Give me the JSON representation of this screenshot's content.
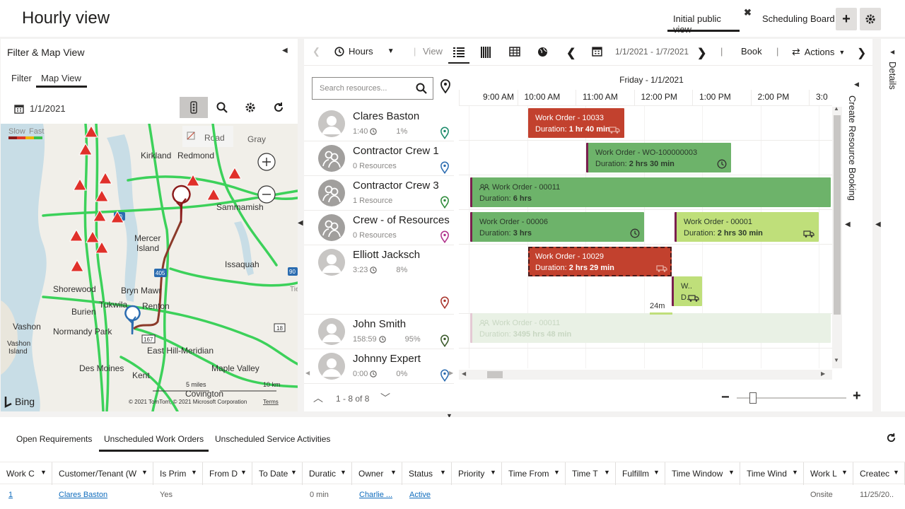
{
  "header": {
    "title": "Hourly view",
    "view_tab": "Initial public view",
    "board_tab": "Scheduling Board",
    "add_label": "+"
  },
  "left": {
    "title": "Filter & Map View",
    "tabs": [
      "Filter",
      "Map View"
    ],
    "date": "1/1/2021",
    "map": {
      "legend_slow": "Slow",
      "legend_fast": "Fast",
      "style_road": "Road",
      "style_gray": "Gray",
      "places": [
        "Kirkland",
        "Redmond",
        "Sammamish",
        "Mercer",
        "Island",
        "Issaquah",
        "Shorewood",
        "Bryn Mawr",
        "Tukwila",
        "Renton",
        "Burien",
        "Vashon",
        "Normandy Park",
        "Vashon",
        "Island",
        "East Hill-Meridian",
        "Des Moines",
        "Kent",
        "Maple Valley",
        "Covington",
        "Tie"
      ],
      "roads": [
        "90",
        "405",
        "90",
        "167",
        "18"
      ],
      "scale_miles": "5 miles",
      "scale_km": "10 km",
      "brand": "Bing",
      "copyright": "© 2021 TomTom, © 2021 Microsoft Corporation",
      "terms": "Terms"
    }
  },
  "toolbar": {
    "hours": "Hours",
    "view": "View",
    "date_range": "1/1/2021 - 1/7/2021",
    "book": "Book",
    "actions": "Actions"
  },
  "search": {
    "placeholder": "Search resources..."
  },
  "timeline": {
    "date": "Friday - 1/1/2021",
    "hours": [
      "9:00 AM",
      "10:00 AM",
      "11:00 AM",
      "12:00 PM",
      "1:00 PM",
      "2:00 PM",
      "3:0"
    ]
  },
  "resources": [
    {
      "name": "Clares Baston",
      "hours": "1:40",
      "pct": "1%",
      "pin": "#1a8a6a"
    },
    {
      "name": "Contractor Crew 1",
      "sub": "0 Resources",
      "pin": "#2b6cb0"
    },
    {
      "name": "Contractor Crew 3",
      "sub": "1 Resource",
      "pin": "#2e8b3a"
    },
    {
      "name": "Crew - of Resources",
      "sub": "0 Resources",
      "pin": "#b0308a"
    },
    {
      "name": "Elliott Jacksch",
      "hours": "3:23",
      "pct": "8%",
      "pin": "#a8332b"
    },
    {
      "name": "John Smith",
      "hours": "158:59",
      "pct": "95%",
      "pin": "#3a5a2a"
    },
    {
      "name": "Johnny Expert",
      "hours": "0:00",
      "pct": "0%",
      "pin": "#2b6cb0"
    }
  ],
  "bookings": [
    {
      "title": "Work Order - 10033",
      "label": "Duration:",
      "dur": "1 hr 40 min"
    },
    {
      "title": "Work Order - WO-100000003",
      "label": "Duration:",
      "dur": "2 hrs 30 min"
    },
    {
      "title": "Work Order - 00011",
      "label": "Duration:",
      "dur": "6 hrs"
    },
    {
      "title": "Work Order - 00006",
      "label": "Duration:",
      "dur": "3 hrs"
    },
    {
      "title": "Work Order - 00001",
      "label": "Duration:",
      "dur": "2 hrs 30 min"
    },
    {
      "title": "Work Order - 10029",
      "label": "Duration:",
      "dur": "2 hrs 29 min"
    },
    {
      "title": "W..",
      "label": "D.."
    },
    {
      "title": "Work Order - 00011",
      "label": "Duration:",
      "dur": "3495 hrs 48 min"
    }
  ],
  "travel": "24m",
  "pager": "1 - 8 of 8",
  "side": {
    "create": "Create Resource Booking",
    "details": "Details"
  },
  "bottom": {
    "tabs": [
      "Open Requirements",
      "Unscheduled Work Orders",
      "Unscheduled Service Activities"
    ],
    "columns": [
      "Work C",
      "Customer/Tenant (W",
      "Is Prim",
      "From D",
      "To Date",
      "Duratic",
      "Owner",
      "Status",
      "Priority",
      "Time From",
      "Time T",
      "Fulfillm",
      "Time Window",
      "Time Wind",
      "Work L",
      "Createc"
    ],
    "row": {
      "num": "1",
      "customer": "Clares Baston",
      "primary": "Yes",
      "duration": "0 min",
      "owner": "Charlie ...",
      "status": "Active",
      "location": "Onsite",
      "created": "11/25/20.."
    }
  }
}
